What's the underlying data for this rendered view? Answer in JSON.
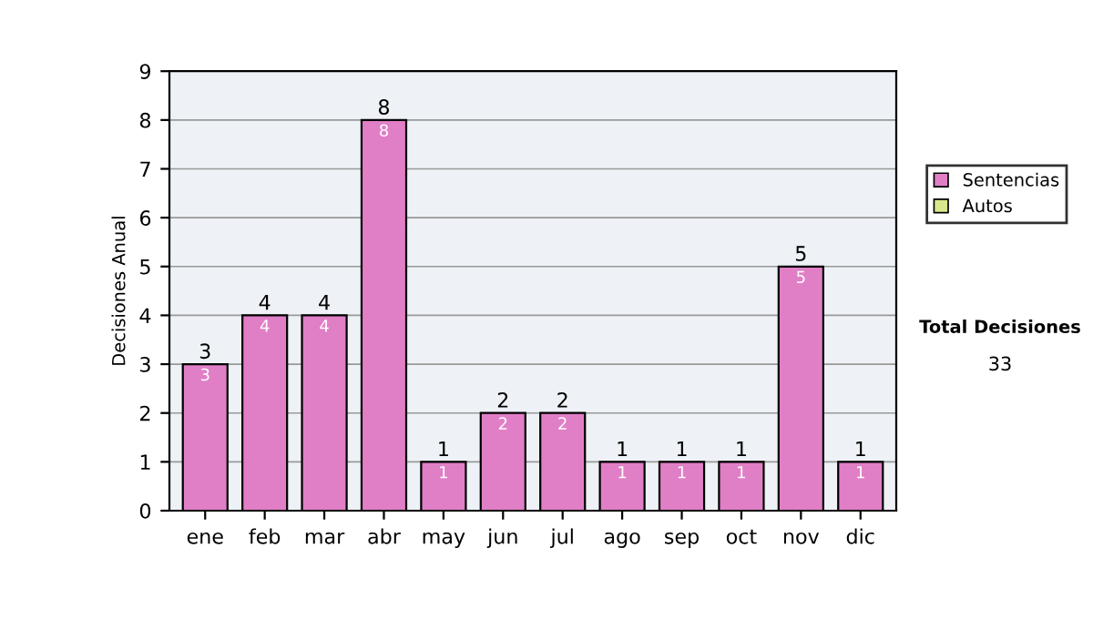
{
  "chart_data": {
    "type": "bar",
    "stacked": true,
    "ylabel": "Decisiones Anual",
    "categories": [
      "ene",
      "feb",
      "mar",
      "abr",
      "may",
      "jun",
      "jul",
      "ago",
      "sep",
      "oct",
      "nov",
      "dic"
    ],
    "series": [
      {
        "name": "Sentencias",
        "color": "#e07fc6",
        "values": [
          3,
          4,
          4,
          8,
          1,
          2,
          2,
          1,
          1,
          1,
          5,
          1
        ],
        "value_labels": [
          "3",
          "4",
          "4",
          "8",
          "1",
          "2",
          "2",
          "1",
          "1",
          "1",
          "5",
          "1"
        ]
      },
      {
        "name": "Autos",
        "color": "#d8e88c",
        "values": [
          0,
          0,
          0,
          0,
          0,
          0,
          0,
          0,
          0,
          0,
          0,
          0
        ]
      }
    ],
    "totals": [
      "3",
      "4",
      "4",
      "8",
      "1",
      "2",
      "2",
      "1",
      "1",
      "1",
      "5",
      "1"
    ],
    "ylim": [
      0,
      9
    ],
    "yticks": [
      0,
      1,
      2,
      3,
      4,
      5,
      6,
      7,
      8,
      9
    ],
    "grid": "y",
    "legend": "right",
    "annotations": [
      "Total Decisiones",
      "33"
    ]
  }
}
